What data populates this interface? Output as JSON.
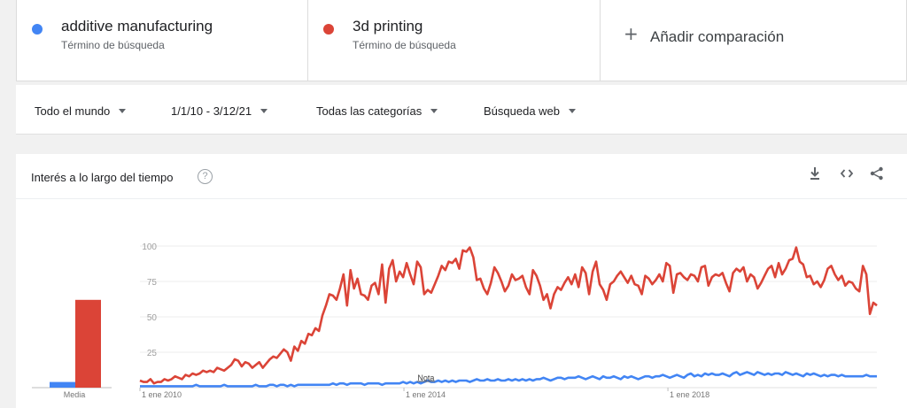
{
  "terms": [
    {
      "name": "additive manufacturing",
      "subtitle": "Término de búsqueda",
      "color": "#4285f4"
    },
    {
      "name": "3d printing",
      "subtitle": "Término de búsqueda",
      "color": "#db4437"
    }
  ],
  "add_comparison": {
    "icon": "plus-icon",
    "label": "Añadir comparación"
  },
  "filters": {
    "region": "Todo el mundo",
    "date_range": "1/1/10 - 3/12/21",
    "category": "Todas las categorías",
    "search_type": "Búsqueda web"
  },
  "card": {
    "title": "Interés a lo largo del tiempo",
    "help_icon": "question-icon",
    "toolbar_icons": [
      "download-icon",
      "embed-icon",
      "share-icon"
    ]
  },
  "chart_data": {
    "type": "line",
    "average_label": "Media",
    "annotation": "Nota",
    "ylim": [
      0,
      100
    ],
    "y_ticks": [
      "100",
      "75",
      "50",
      "25"
    ],
    "x_ticks": [
      "1 ene 2010",
      "1 ene 2014",
      "1 ene 2018"
    ],
    "x_range": [
      "2010-01",
      "2021-03"
    ],
    "averages": [
      {
        "series": "additive manufacturing",
        "value": 4,
        "color": "#4285f4"
      },
      {
        "series": "3d printing",
        "value": 62,
        "color": "#db4437"
      }
    ],
    "series": [
      {
        "name": "3d printing",
        "color": "#db4437",
        "values": [
          5,
          4,
          4,
          6,
          3,
          4,
          4,
          6,
          5,
          6,
          8,
          7,
          6,
          9,
          8,
          10,
          9,
          10,
          12,
          11,
          12,
          11,
          14,
          13,
          12,
          14,
          16,
          20,
          19,
          15,
          18,
          17,
          14,
          16,
          18,
          14,
          17,
          20,
          22,
          21,
          24,
          27,
          25,
          19,
          29,
          26,
          33,
          31,
          38,
          37,
          42,
          40,
          51,
          58,
          66,
          65,
          62,
          70,
          80,
          58,
          83,
          70,
          77,
          66,
          65,
          62,
          72,
          74,
          66,
          87,
          60,
          84,
          90,
          75,
          82,
          78,
          88,
          80,
          73,
          89,
          85,
          66,
          69,
          67,
          73,
          79,
          86,
          83,
          89,
          88,
          91,
          84,
          97,
          96,
          99,
          92,
          76,
          77,
          70,
          66,
          74,
          85,
          81,
          75,
          68,
          72,
          80,
          76,
          77,
          79,
          71,
          66,
          83,
          79,
          72,
          62,
          66,
          56,
          66,
          71,
          69,
          74,
          78,
          73,
          80,
          71,
          85,
          81,
          66,
          82,
          89,
          73,
          69,
          62,
          73,
          75,
          79,
          82,
          78,
          74,
          79,
          73,
          72,
          66,
          79,
          77,
          73,
          76,
          80,
          75,
          88,
          86,
          67,
          80,
          81,
          78,
          76,
          80,
          79,
          75,
          85,
          86,
          72,
          78,
          80,
          79,
          81,
          74,
          68,
          81,
          84,
          82,
          85,
          75,
          80,
          78,
          70,
          74,
          79,
          84,
          86,
          78,
          88,
          80,
          84,
          90,
          91,
          99,
          89,
          87,
          78,
          79,
          73,
          75,
          71,
          76,
          84,
          86,
          80,
          76,
          79,
          72,
          75,
          74,
          70,
          68,
          86,
          80,
          52,
          60,
          58
        ]
      },
      {
        "name": "additive manufacturing",
        "color": "#4285f4",
        "values": [
          1,
          1,
          1,
          1,
          1,
          1,
          1,
          1,
          1,
          1,
          1,
          1,
          1,
          1,
          1,
          1,
          2,
          1,
          1,
          1,
          1,
          1,
          1,
          1,
          2,
          1,
          1,
          1,
          1,
          1,
          1,
          1,
          1,
          2,
          1,
          1,
          1,
          2,
          2,
          1,
          2,
          2,
          1,
          2,
          1,
          2,
          2,
          2,
          2,
          2,
          2,
          2,
          2,
          2,
          2,
          3,
          2,
          3,
          3,
          2,
          3,
          3,
          3,
          3,
          2,
          3,
          3,
          3,
          3,
          2,
          3,
          3,
          3,
          3,
          3,
          4,
          3,
          4,
          3,
          4,
          3,
          4,
          5,
          4,
          4,
          5,
          4,
          5,
          4,
          5,
          4,
          5,
          5,
          5,
          4,
          5,
          6,
          5,
          5,
          6,
          5,
          5,
          6,
          5,
          5,
          6,
          5,
          6,
          5,
          6,
          5,
          6,
          5,
          6,
          6,
          7,
          6,
          5,
          6,
          7,
          7,
          6,
          7,
          7,
          7,
          8,
          7,
          6,
          7,
          8,
          7,
          6,
          8,
          7,
          7,
          8,
          7,
          6,
          8,
          7,
          8,
          7,
          6,
          7,
          8,
          8,
          7,
          8,
          8,
          9,
          8,
          7,
          8,
          9,
          8,
          7,
          9,
          10,
          8,
          9,
          8,
          10,
          9,
          10,
          9,
          9,
          10,
          9,
          8,
          10,
          11,
          9,
          10,
          11,
          10,
          9,
          11,
          10,
          9,
          10,
          9,
          10,
          10,
          9,
          11,
          10,
          9,
          10,
          9,
          8,
          10,
          9,
          10,
          9,
          8,
          9,
          8,
          9,
          9,
          8,
          9,
          8,
          8,
          8,
          8,
          8,
          8,
          9,
          8,
          8,
          8
        ]
      }
    ]
  }
}
